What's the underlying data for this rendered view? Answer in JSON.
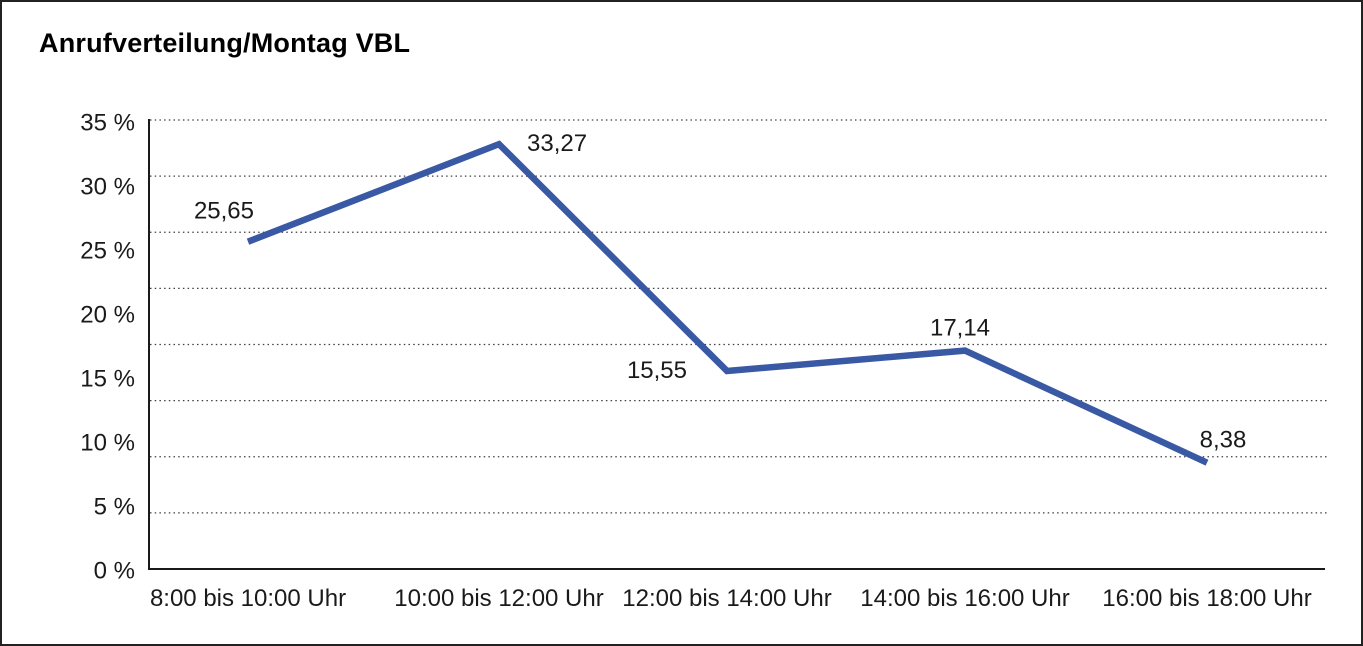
{
  "window": {
    "title": "Anrufverteilung/Montag VBL"
  },
  "chart_data": {
    "type": "line",
    "title": "Anrufverteilung/Montag VBL",
    "categories": [
      "8:00 bis 10:00 Uhr",
      "10:00 bis 12:00 Uhr",
      "12:00 bis 14:00 Uhr",
      "14:00 bis 16:00 Uhr",
      "16:00 bis 18:00 Uhr"
    ],
    "values": [
      25.65,
      33.27,
      15.55,
      17.14,
      8.38
    ],
    "point_labels": [
      "25,65",
      "33,27",
      "15,55",
      "17,14",
      "8,38"
    ],
    "point_label_positions": [
      "above-left",
      "right",
      "left",
      "above",
      "above-right"
    ],
    "y_ticks": [
      "35 %",
      "30 %",
      "25 %",
      "20 %",
      "15 %",
      "10 %",
      "5 %",
      "0 %"
    ],
    "ylim": [
      0,
      35
    ],
    "xlabel": "",
    "ylabel": "",
    "unit": "%",
    "decimal_separator": ",",
    "grid": "dotted-horizontal",
    "legend": "none",
    "colors": {
      "line": "#3a59a4",
      "axis": "#1a1a1a",
      "gridline": "#3f3f3f",
      "text": "#1a1a1a",
      "background": "#ffffff"
    }
  }
}
